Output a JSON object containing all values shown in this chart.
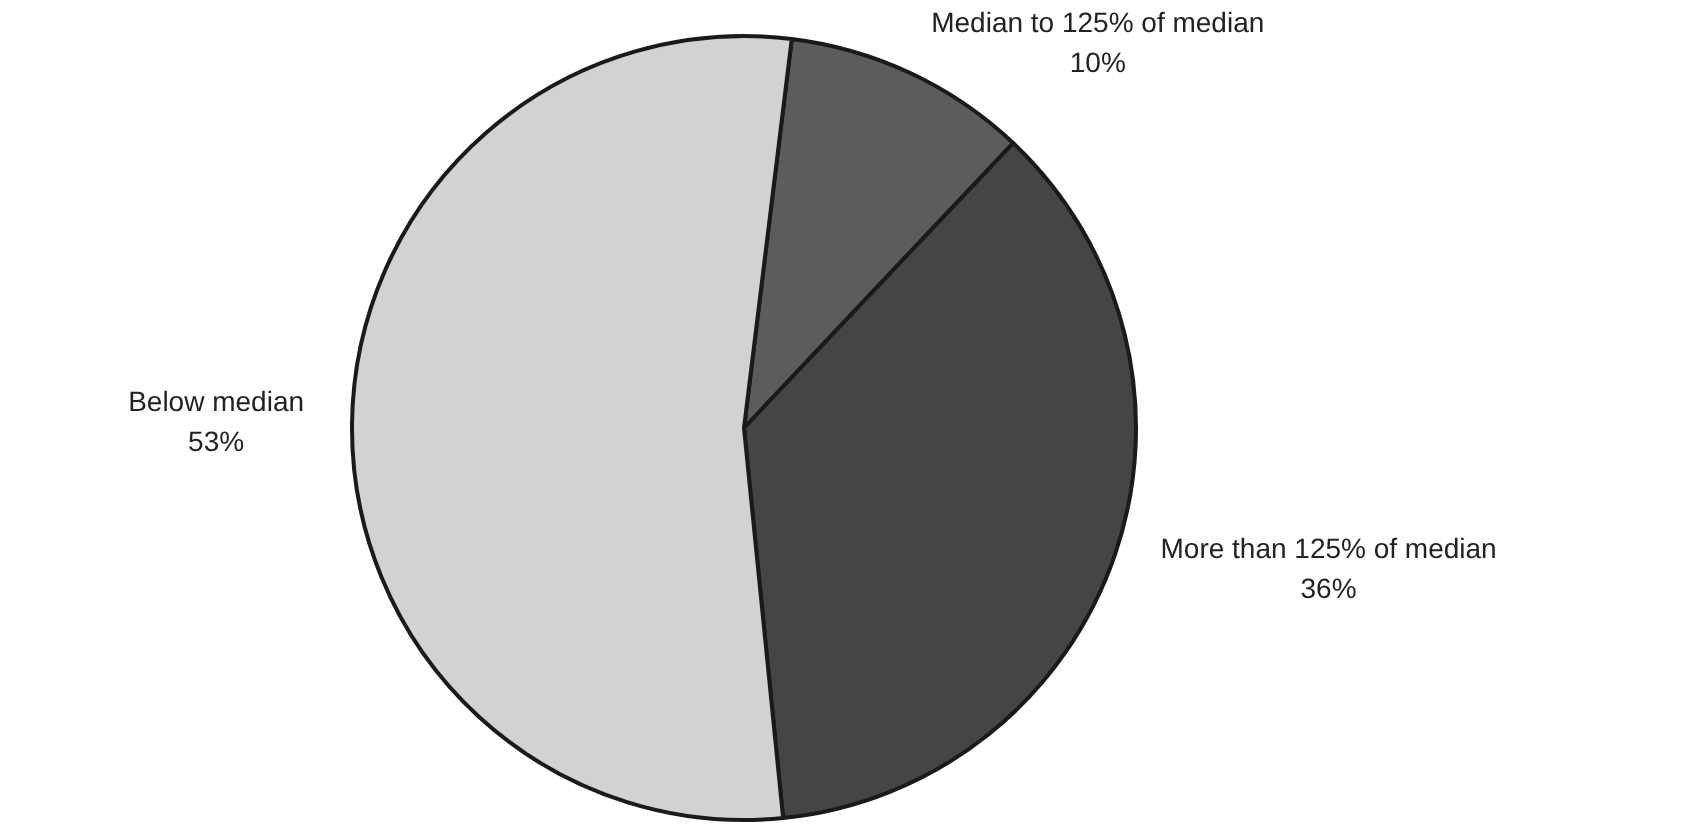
{
  "chart_data": {
    "type": "pie",
    "categories": [
      "Median to 125% of median",
      "More than 125% of median",
      "Below median"
    ],
    "values": [
      10,
      36,
      53
    ],
    "colors": [
      "#5c5c5c",
      "#454545",
      "#d2d2d2"
    ],
    "value_labels": [
      "10%",
      "36%",
      "53%"
    ]
  }
}
